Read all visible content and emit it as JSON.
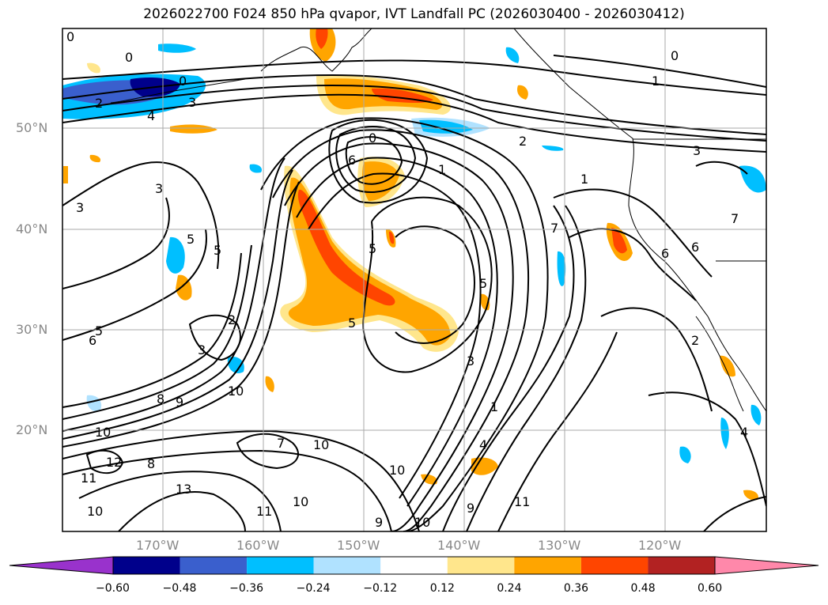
{
  "title": "2026022700 F024 850 hPa qvapor, IVT Landfall PC (2026030400 - 2026030412)",
  "lat_labels": [
    "50°N",
    "40°N",
    "30°N",
    "20°N"
  ],
  "lon_labels": [
    "170°W",
    "160°W",
    "150°W",
    "140°W",
    "130°W",
    "120°W"
  ],
  "colorbar": {
    "colors": [
      "#9932cc",
      "#00008b",
      "#3a5fcd",
      "#00bfff",
      "#b0e2ff",
      "#ffffff",
      "#ffe68c",
      "#ffa500",
      "#ff4500",
      "#b22222",
      "#ff88aa"
    ],
    "ticks": [
      "−0.60",
      "−0.48",
      "−0.36",
      "−0.24",
      "−0.12",
      "0.12",
      "0.24",
      "0.36",
      "0.48",
      "0.60"
    ]
  },
  "contour_labels": [
    "0",
    "0",
    "0",
    "0",
    "0",
    "1",
    "1",
    "1",
    "1",
    "2",
    "2",
    "2",
    "2",
    "3",
    "3",
    "3",
    "3",
    "3",
    "3",
    "4",
    "4",
    "4",
    "5",
    "5",
    "5",
    "5",
    "5",
    "5",
    "6",
    "6",
    "6",
    "6",
    "7",
    "7",
    "7",
    "8",
    "8",
    "9",
    "9",
    "9",
    "10",
    "10",
    "10",
    "10",
    "10",
    "10",
    "10",
    "11",
    "11",
    "11",
    "12",
    "13"
  ]
}
